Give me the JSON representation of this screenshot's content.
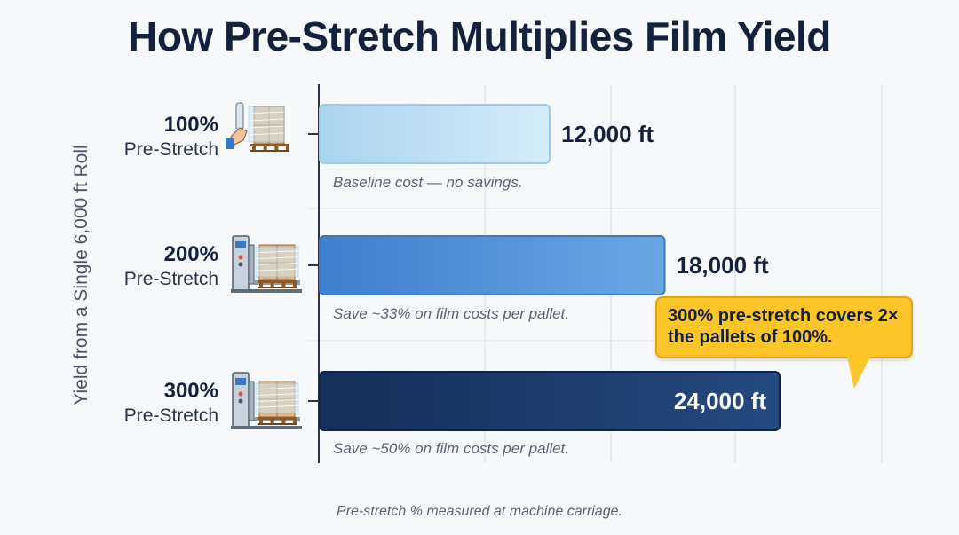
{
  "chart_data": {
    "type": "bar",
    "orientation": "horizontal",
    "title": "How Pre-Stretch Multiplies Film Yield",
    "ylabel": "Yield from a Single 6,000 ft Roll",
    "categories": [
      {
        "pct": "100%",
        "name": "Pre-Stretch"
      },
      {
        "pct": "200%",
        "name": "Pre-Stretch"
      },
      {
        "pct": "300%",
        "name": "Pre-Stretch"
      }
    ],
    "values": [
      12000,
      18000,
      24000
    ],
    "value_labels": [
      "12,000 ft",
      "18,000 ft",
      "24,000 ft"
    ],
    "notes": [
      "Baseline cost — no savings.",
      "Save ~33% on film costs per pallet.",
      "Save ~50% on film costs per pallet."
    ],
    "colors": [
      "#bfe0f3",
      "#4f8fd6",
      "#1b3a6b"
    ],
    "icons": [
      "hand-wrapping-pallet-icon",
      "stretch-wrap-machine-icon",
      "stretch-wrap-machine-icon"
    ],
    "callout": "300% pre-stretch covers 2× the pallets of 100%.",
    "footnote": "Pre-stretch % measured at machine carriage.",
    "grid": true
  }
}
